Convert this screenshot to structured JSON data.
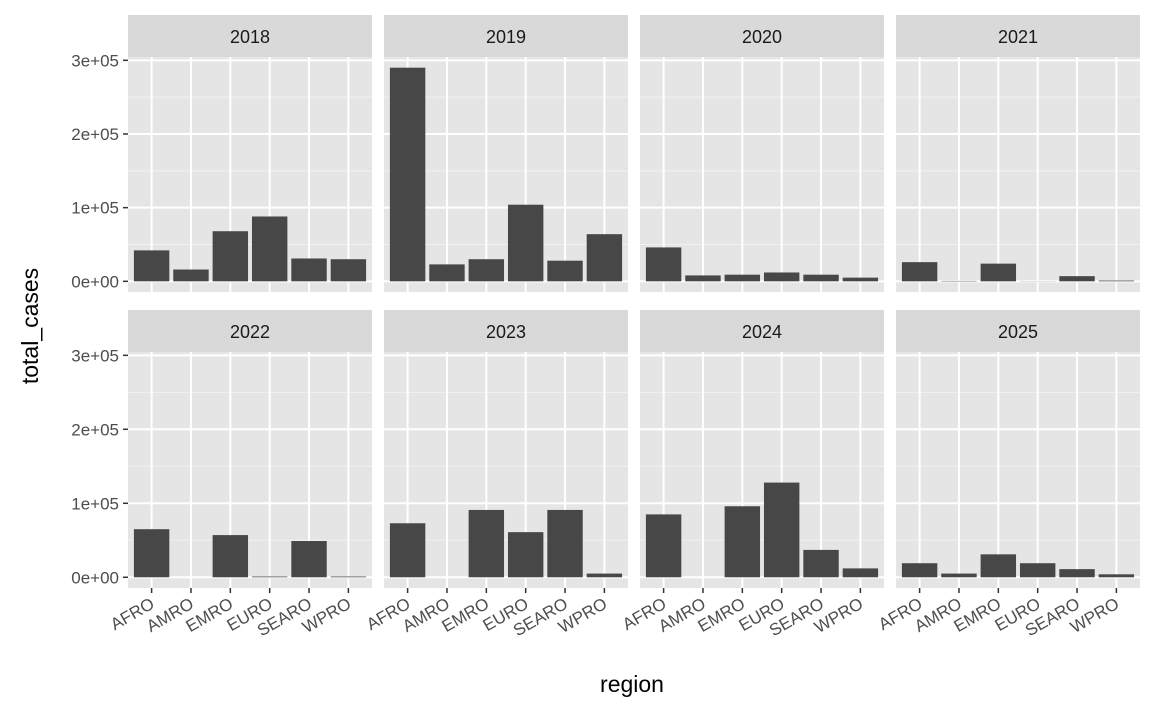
{
  "chart_data": {
    "type": "bar",
    "faceted_by": "year",
    "xlabel": "region",
    "ylabel": "total_cases",
    "ylim": [
      0,
      300000
    ],
    "yticks": [
      0,
      100000,
      200000,
      300000
    ],
    "ytick_labels": [
      "0e+00",
      "1e+05",
      "2e+05",
      "3e+05"
    ],
    "grid": true,
    "categories": [
      "AFRO",
      "AMRO",
      "EMRO",
      "EURO",
      "SEARO",
      "WPRO"
    ],
    "bar_color": "#474747",
    "panel_bg": "#e5e5e5",
    "strip_bg": "#d9d9d9",
    "facets": [
      {
        "label": "2018",
        "values": [
          42000,
          16000,
          68000,
          88000,
          31000,
          30000
        ]
      },
      {
        "label": "2019",
        "values": [
          290000,
          23000,
          30000,
          104000,
          28000,
          64000
        ]
      },
      {
        "label": "2020",
        "values": [
          46000,
          8000,
          9000,
          12000,
          9000,
          5000
        ]
      },
      {
        "label": "2021",
        "values": [
          26000,
          500,
          24000,
          200,
          7000,
          1000
        ]
      },
      {
        "label": "2022",
        "values": [
          65000,
          0,
          57000,
          1000,
          49000,
          1000
        ]
      },
      {
        "label": "2023",
        "values": [
          73000,
          0,
          91000,
          61000,
          91000,
          5000
        ]
      },
      {
        "label": "2024",
        "values": [
          85000,
          0,
          96000,
          128000,
          37000,
          12000
        ]
      },
      {
        "label": "2025",
        "values": [
          19000,
          5000,
          31000,
          19000,
          11000,
          4000
        ]
      }
    ]
  }
}
